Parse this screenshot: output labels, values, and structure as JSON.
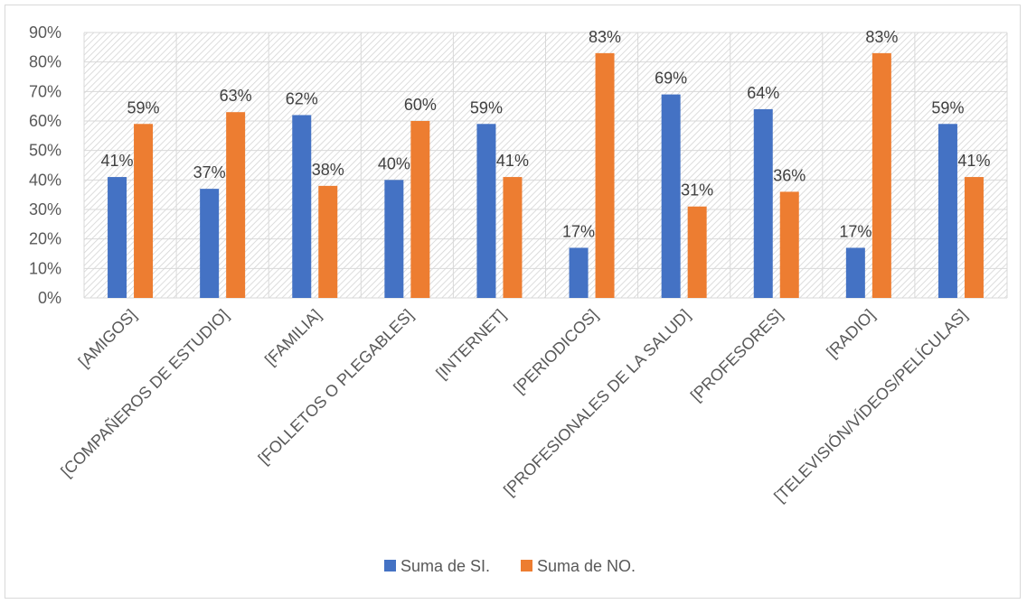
{
  "chart_data": {
    "type": "bar",
    "categories": [
      "[AMIGOS]",
      "[COMPAÑEROS DE ESTUDIO]",
      "[FAMILIA]",
      "[FOLLETOS O PLEGABLES]",
      "[INTERNET]",
      "[PERIODICOS]",
      "[PROFESIONALES DE LA SALUD]",
      "[PROFESORES]",
      "[RADIO]",
      "[TELEVISIÓN/VÍDEOS/PELÍCULAS]"
    ],
    "series": [
      {
        "name": "Suma de SI.",
        "color": "#4472c4",
        "values": [
          41,
          37,
          62,
          40,
          59,
          17,
          69,
          64,
          17,
          59
        ],
        "labels": [
          "41%",
          "37%",
          "62%",
          "40%",
          "59%",
          "17%",
          "69%",
          "64%",
          "17%",
          "59%"
        ]
      },
      {
        "name": "Suma de NO.",
        "color": "#ed7d31",
        "values": [
          59,
          63,
          38,
          60,
          41,
          83,
          31,
          36,
          83,
          41
        ],
        "labels": [
          "59%",
          "63%",
          "38%",
          "60%",
          "41%",
          "83%",
          "31%",
          "36%",
          "83%",
          "41%"
        ]
      }
    ],
    "y_ticks": [
      "0%",
      "10%",
      "20%",
      "30%",
      "40%",
      "50%",
      "60%",
      "70%",
      "80%",
      "90%"
    ],
    "ylim": [
      0,
      90
    ],
    "y_unit": "%",
    "title": "",
    "xlabel": "",
    "ylabel": "",
    "grid": true,
    "plot_background": "diagonal-hatch",
    "legend_position": "bottom"
  }
}
